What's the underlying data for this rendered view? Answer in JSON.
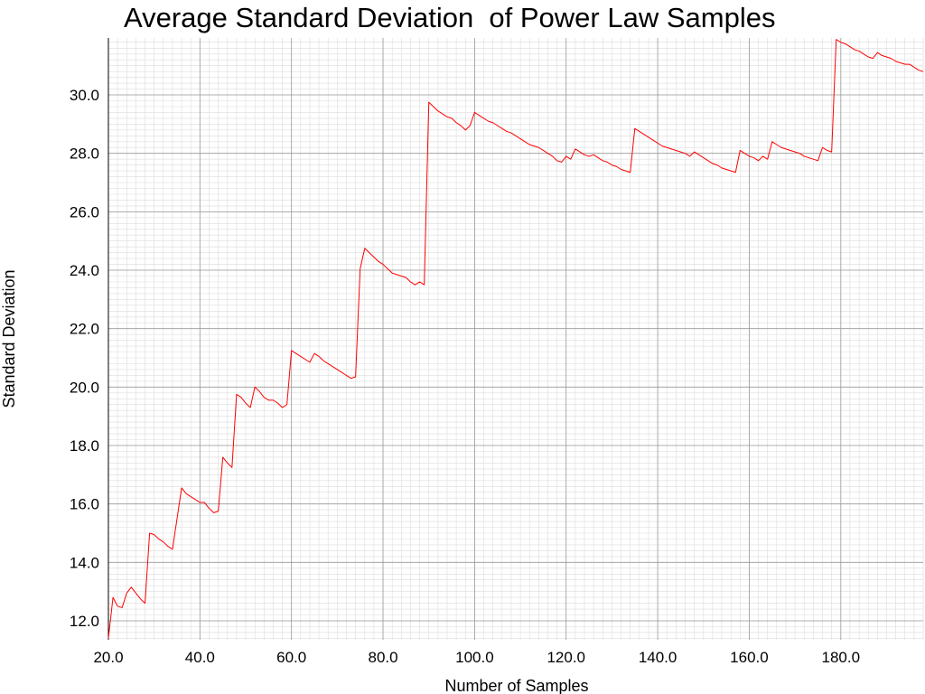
{
  "chart_data": {
    "type": "line",
    "title": "Average Standard Deviation  of Power Law Samples",
    "xlabel": "Number of Samples",
    "ylabel": "Standard Deviation",
    "xlim": [
      20,
      198
    ],
    "ylim": [
      11.35,
      31.95
    ],
    "x_ticks": [
      20,
      40,
      60,
      80,
      100,
      120,
      140,
      160,
      180
    ],
    "y_ticks": [
      12,
      14,
      16,
      18,
      20,
      22,
      24,
      26,
      28,
      30
    ],
    "x_tick_labels": [
      "20.0",
      "40.0",
      "60.0",
      "80.0",
      "100.0",
      "120.0",
      "140.0",
      "160.0",
      "180.0"
    ],
    "y_tick_labels": [
      "12.0",
      "14.0",
      "16.0",
      "18.0",
      "20.0",
      "22.0",
      "24.0",
      "26.0",
      "28.0",
      "30.0"
    ],
    "grid": true,
    "series": [
      {
        "color": "#ff0000",
        "points": [
          [
            20,
            11.4
          ],
          [
            21,
            12.8
          ],
          [
            22,
            12.5
          ],
          [
            23,
            12.45
          ],
          [
            24,
            12.95
          ],
          [
            25,
            13.15
          ],
          [
            26,
            12.95
          ],
          [
            27,
            12.75
          ],
          [
            28,
            12.6
          ],
          [
            29,
            15.0
          ],
          [
            30,
            14.95
          ],
          [
            31,
            14.8
          ],
          [
            32,
            14.7
          ],
          [
            33,
            14.55
          ],
          [
            34,
            14.45
          ],
          [
            35,
            15.5
          ],
          [
            36,
            16.55
          ],
          [
            37,
            16.35
          ],
          [
            38,
            16.25
          ],
          [
            39,
            16.15
          ],
          [
            40,
            16.05
          ],
          [
            41,
            16.05
          ],
          [
            42,
            15.85
          ],
          [
            43,
            15.7
          ],
          [
            44,
            15.75
          ],
          [
            45,
            17.6
          ],
          [
            46,
            17.4
          ],
          [
            47,
            17.25
          ],
          [
            48,
            19.75
          ],
          [
            49,
            19.65
          ],
          [
            50,
            19.45
          ],
          [
            51,
            19.3
          ],
          [
            52,
            20.0
          ],
          [
            53,
            19.85
          ],
          [
            54,
            19.65
          ],
          [
            55,
            19.55
          ],
          [
            56,
            19.55
          ],
          [
            57,
            19.45
          ],
          [
            58,
            19.3
          ],
          [
            59,
            19.4
          ],
          [
            60,
            21.25
          ],
          [
            61,
            21.15
          ],
          [
            62,
            21.05
          ],
          [
            63,
            20.95
          ],
          [
            64,
            20.85
          ],
          [
            65,
            21.15
          ],
          [
            66,
            21.05
          ],
          [
            67,
            20.9
          ],
          [
            68,
            20.8
          ],
          [
            69,
            20.7
          ],
          [
            70,
            20.6
          ],
          [
            71,
            20.5
          ],
          [
            72,
            20.4
          ],
          [
            73,
            20.3
          ],
          [
            74,
            20.35
          ],
          [
            75,
            24.05
          ],
          [
            76,
            24.75
          ],
          [
            77,
            24.6
          ],
          [
            78,
            24.45
          ],
          [
            79,
            24.3
          ],
          [
            80,
            24.2
          ],
          [
            81,
            24.05
          ],
          [
            82,
            23.9
          ],
          [
            83,
            23.85
          ],
          [
            84,
            23.8
          ],
          [
            85,
            23.75
          ],
          [
            86,
            23.6
          ],
          [
            87,
            23.5
          ],
          [
            88,
            23.6
          ],
          [
            89,
            23.5
          ],
          [
            90,
            29.75
          ],
          [
            91,
            29.6
          ],
          [
            92,
            29.45
          ],
          [
            93,
            29.35
          ],
          [
            94,
            29.25
          ],
          [
            95,
            29.2
          ],
          [
            96,
            29.05
          ],
          [
            97,
            28.95
          ],
          [
            98,
            28.8
          ],
          [
            99,
            28.95
          ],
          [
            100,
            29.4
          ],
          [
            101,
            29.3
          ],
          [
            102,
            29.2
          ],
          [
            103,
            29.1
          ],
          [
            104,
            29.05
          ],
          [
            105,
            28.95
          ],
          [
            106,
            28.85
          ],
          [
            107,
            28.75
          ],
          [
            108,
            28.7
          ],
          [
            109,
            28.6
          ],
          [
            110,
            28.5
          ],
          [
            111,
            28.4
          ],
          [
            112,
            28.3
          ],
          [
            113,
            28.25
          ],
          [
            114,
            28.2
          ],
          [
            115,
            28.1
          ],
          [
            116,
            28.0
          ],
          [
            117,
            27.9
          ],
          [
            118,
            27.75
          ],
          [
            119,
            27.7
          ],
          [
            120,
            27.9
          ],
          [
            121,
            27.8
          ],
          [
            122,
            28.15
          ],
          [
            123,
            28.05
          ],
          [
            124,
            27.95
          ],
          [
            125,
            27.9
          ],
          [
            126,
            27.95
          ],
          [
            127,
            27.85
          ],
          [
            128,
            27.75
          ],
          [
            129,
            27.7
          ],
          [
            130,
            27.6
          ],
          [
            131,
            27.55
          ],
          [
            132,
            27.45
          ],
          [
            133,
            27.4
          ],
          [
            134,
            27.35
          ],
          [
            135,
            28.85
          ],
          [
            136,
            28.75
          ],
          [
            137,
            28.65
          ],
          [
            138,
            28.55
          ],
          [
            139,
            28.45
          ],
          [
            140,
            28.35
          ],
          [
            141,
            28.25
          ],
          [
            142,
            28.2
          ],
          [
            143,
            28.15
          ],
          [
            144,
            28.1
          ],
          [
            145,
            28.05
          ],
          [
            146,
            28.0
          ],
          [
            147,
            27.9
          ],
          [
            148,
            28.05
          ],
          [
            149,
            27.95
          ],
          [
            150,
            27.85
          ],
          [
            151,
            27.75
          ],
          [
            152,
            27.65
          ],
          [
            153,
            27.6
          ],
          [
            154,
            27.5
          ],
          [
            155,
            27.45
          ],
          [
            156,
            27.4
          ],
          [
            157,
            27.35
          ],
          [
            158,
            28.1
          ],
          [
            159,
            28.0
          ],
          [
            160,
            27.9
          ],
          [
            161,
            27.85
          ],
          [
            162,
            27.75
          ],
          [
            163,
            27.9
          ],
          [
            164,
            27.8
          ],
          [
            165,
            28.4
          ],
          [
            166,
            28.3
          ],
          [
            167,
            28.2
          ],
          [
            168,
            28.15
          ],
          [
            169,
            28.1
          ],
          [
            170,
            28.05
          ],
          [
            171,
            28.0
          ],
          [
            172,
            27.9
          ],
          [
            173,
            27.85
          ],
          [
            174,
            27.8
          ],
          [
            175,
            27.75
          ],
          [
            176,
            28.2
          ],
          [
            177,
            28.1
          ],
          [
            178,
            28.05
          ],
          [
            179,
            31.9
          ],
          [
            180,
            31.8
          ],
          [
            181,
            31.75
          ],
          [
            182,
            31.65
          ],
          [
            183,
            31.55
          ],
          [
            184,
            31.5
          ],
          [
            185,
            31.4
          ],
          [
            186,
            31.3
          ],
          [
            187,
            31.25
          ],
          [
            188,
            31.45
          ],
          [
            189,
            31.35
          ],
          [
            190,
            31.3
          ],
          [
            191,
            31.25
          ],
          [
            192,
            31.15
          ],
          [
            193,
            31.1
          ],
          [
            194,
            31.05
          ],
          [
            195,
            31.05
          ],
          [
            196,
            30.95
          ],
          [
            197,
            30.85
          ],
          [
            198,
            30.8
          ]
        ]
      }
    ]
  }
}
